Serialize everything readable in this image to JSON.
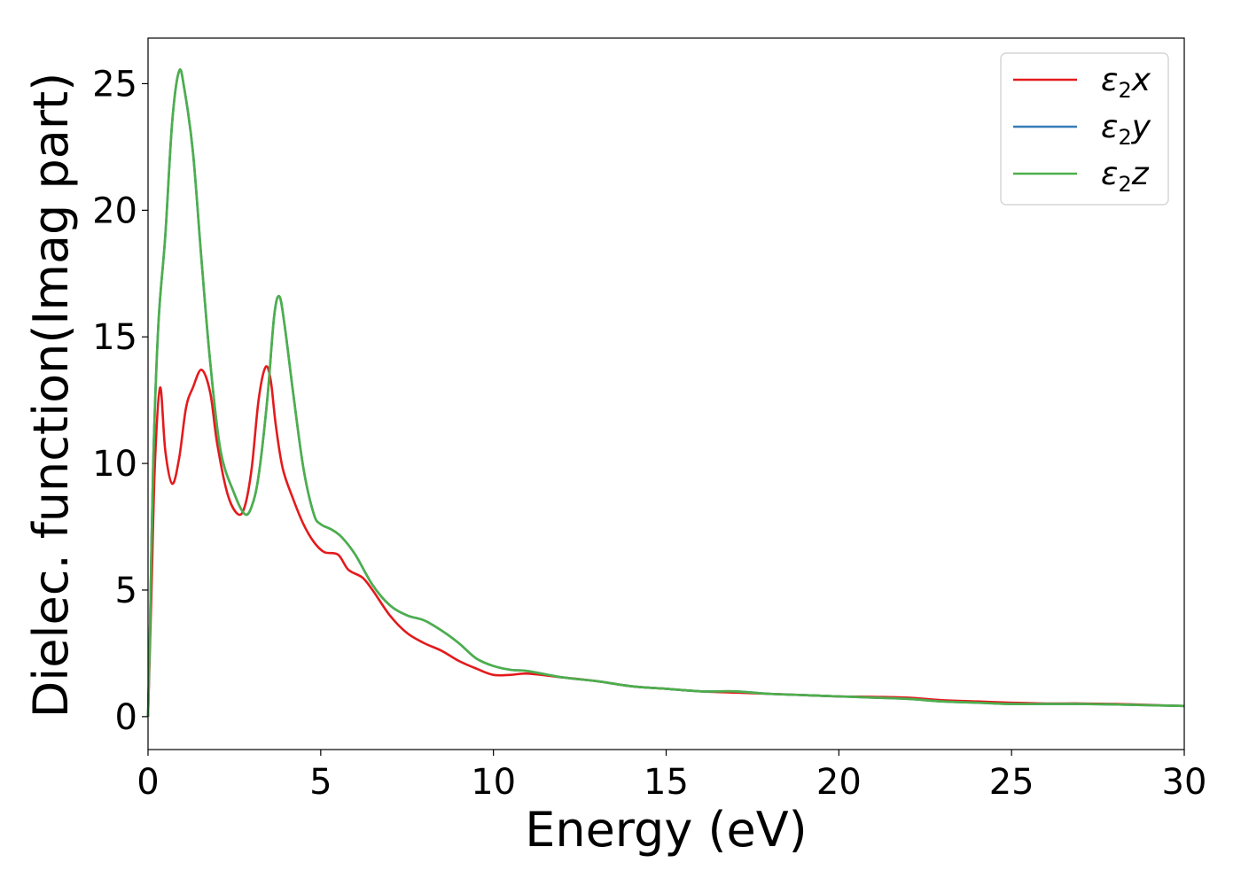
{
  "chart_data": {
    "type": "line",
    "xlabel": "Energy (eV)",
    "ylabel": "Dielec. function(Imag part)",
    "xlim": [
      0,
      30
    ],
    "ylim": [
      -1.3,
      26.8
    ],
    "xticks": [
      0,
      5,
      10,
      15,
      20,
      25,
      30
    ],
    "yticks": [
      0,
      5,
      10,
      15,
      20,
      25
    ],
    "legend_position": "top-right",
    "grid": false,
    "series": [
      {
        "name": "ε2x",
        "legend_base": "ε",
        "legend_sub": "2",
        "legend_var": "x",
        "color": "#e41a1c",
        "points": [
          [
            0,
            0
          ],
          [
            0.1,
            5
          ],
          [
            0.2,
            10
          ],
          [
            0.35,
            13
          ],
          [
            0.5,
            10.5
          ],
          [
            0.7,
            9.2
          ],
          [
            0.9,
            10.2
          ],
          [
            1.1,
            12.2
          ],
          [
            1.3,
            13
          ],
          [
            1.55,
            13.7
          ],
          [
            1.8,
            12.8
          ],
          [
            2.0,
            10.8
          ],
          [
            2.3,
            8.8
          ],
          [
            2.6,
            8.0
          ],
          [
            2.8,
            8.3
          ],
          [
            3.0,
            9.8
          ],
          [
            3.2,
            12.5
          ],
          [
            3.4,
            13.8
          ],
          [
            3.55,
            13.3
          ],
          [
            3.7,
            11.5
          ],
          [
            3.9,
            9.8
          ],
          [
            4.2,
            8.6
          ],
          [
            4.5,
            7.6
          ],
          [
            4.8,
            6.9
          ],
          [
            5.1,
            6.5
          ],
          [
            5.5,
            6.4
          ],
          [
            5.8,
            5.8
          ],
          [
            6.2,
            5.5
          ],
          [
            6.5,
            5.0
          ],
          [
            7.0,
            4.0
          ],
          [
            7.5,
            3.3
          ],
          [
            8.0,
            2.9
          ],
          [
            8.5,
            2.6
          ],
          [
            9.0,
            2.2
          ],
          [
            9.5,
            1.9
          ],
          [
            10,
            1.65
          ],
          [
            10.5,
            1.65
          ],
          [
            11,
            1.7
          ],
          [
            12,
            1.55
          ],
          [
            13,
            1.4
          ],
          [
            14,
            1.2
          ],
          [
            15,
            1.1
          ],
          [
            16,
            1.0
          ],
          [
            17,
            0.95
          ],
          [
            18,
            0.9
          ],
          [
            19,
            0.85
          ],
          [
            20,
            0.8
          ],
          [
            21,
            0.78
          ],
          [
            22,
            0.75
          ],
          [
            23,
            0.65
          ],
          [
            24,
            0.6
          ],
          [
            25,
            0.55
          ],
          [
            26,
            0.52
          ],
          [
            27,
            0.52
          ],
          [
            28,
            0.5
          ],
          [
            29,
            0.46
          ],
          [
            30,
            0.42
          ]
        ]
      },
      {
        "name": "ε2y",
        "legend_base": "ε",
        "legend_sub": "2",
        "legend_var": "y",
        "color": "#377eb8",
        "points": [
          [
            0,
            0
          ],
          [
            0.05,
            3
          ],
          [
            0.15,
            10
          ],
          [
            0.3,
            15.5
          ],
          [
            0.5,
            19
          ],
          [
            0.7,
            23.5
          ],
          [
            0.9,
            25.5
          ],
          [
            1.05,
            24.8
          ],
          [
            1.3,
            22.3
          ],
          [
            1.55,
            18
          ],
          [
            1.8,
            14
          ],
          [
            2.1,
            10.5
          ],
          [
            2.5,
            8.8
          ],
          [
            2.8,
            8.0
          ],
          [
            3.0,
            8.3
          ],
          [
            3.2,
            9.5
          ],
          [
            3.45,
            12.5
          ],
          [
            3.65,
            15.8
          ],
          [
            3.8,
            16.6
          ],
          [
            3.95,
            15.5
          ],
          [
            4.2,
            12.8
          ],
          [
            4.5,
            9.8
          ],
          [
            4.8,
            8.0
          ],
          [
            5.0,
            7.6
          ],
          [
            5.3,
            7.4
          ],
          [
            5.6,
            7.1
          ],
          [
            6.0,
            6.4
          ],
          [
            6.5,
            5.2
          ],
          [
            7.0,
            4.4
          ],
          [
            7.5,
            4.0
          ],
          [
            8.0,
            3.8
          ],
          [
            8.5,
            3.4
          ],
          [
            9.0,
            2.9
          ],
          [
            9.5,
            2.3
          ],
          [
            10,
            2.0
          ],
          [
            10.5,
            1.85
          ],
          [
            11,
            1.8
          ],
          [
            12,
            1.55
          ],
          [
            13,
            1.4
          ],
          [
            14,
            1.2
          ],
          [
            15,
            1.1
          ],
          [
            16,
            1.0
          ],
          [
            17,
            1.0
          ],
          [
            18,
            0.9
          ],
          [
            19,
            0.85
          ],
          [
            20,
            0.8
          ],
          [
            21,
            0.75
          ],
          [
            22,
            0.7
          ],
          [
            23,
            0.6
          ],
          [
            24,
            0.55
          ],
          [
            25,
            0.5
          ],
          [
            26,
            0.5
          ],
          [
            27,
            0.5
          ],
          [
            28,
            0.48
          ],
          [
            29,
            0.45
          ],
          [
            30,
            0.42
          ]
        ]
      },
      {
        "name": "ε2z",
        "legend_base": "ε",
        "legend_sub": "2",
        "legend_var": "z",
        "color": "#4daf4a",
        "points": [
          [
            0,
            0
          ],
          [
            0.05,
            3
          ],
          [
            0.15,
            10
          ],
          [
            0.3,
            15.5
          ],
          [
            0.5,
            19
          ],
          [
            0.7,
            23.5
          ],
          [
            0.9,
            25.5
          ],
          [
            1.05,
            24.8
          ],
          [
            1.3,
            22.3
          ],
          [
            1.55,
            18
          ],
          [
            1.8,
            14
          ],
          [
            2.1,
            10.5
          ],
          [
            2.5,
            8.8
          ],
          [
            2.8,
            8.0
          ],
          [
            3.0,
            8.3
          ],
          [
            3.2,
            9.5
          ],
          [
            3.45,
            12.5
          ],
          [
            3.65,
            15.8
          ],
          [
            3.8,
            16.6
          ],
          [
            3.95,
            15.5
          ],
          [
            4.2,
            12.8
          ],
          [
            4.5,
            9.8
          ],
          [
            4.8,
            8.0
          ],
          [
            5.0,
            7.6
          ],
          [
            5.3,
            7.4
          ],
          [
            5.6,
            7.1
          ],
          [
            6.0,
            6.4
          ],
          [
            6.5,
            5.2
          ],
          [
            7.0,
            4.4
          ],
          [
            7.5,
            4.0
          ],
          [
            8.0,
            3.8
          ],
          [
            8.5,
            3.4
          ],
          [
            9.0,
            2.9
          ],
          [
            9.5,
            2.3
          ],
          [
            10,
            2.0
          ],
          [
            10.5,
            1.85
          ],
          [
            11,
            1.8
          ],
          [
            12,
            1.55
          ],
          [
            13,
            1.4
          ],
          [
            14,
            1.2
          ],
          [
            15,
            1.1
          ],
          [
            16,
            1.0
          ],
          [
            17,
            1.0
          ],
          [
            18,
            0.9
          ],
          [
            19,
            0.85
          ],
          [
            20,
            0.8
          ],
          [
            21,
            0.75
          ],
          [
            22,
            0.7
          ],
          [
            23,
            0.6
          ],
          [
            24,
            0.55
          ],
          [
            25,
            0.5
          ],
          [
            26,
            0.5
          ],
          [
            27,
            0.5
          ],
          [
            28,
            0.48
          ],
          [
            29,
            0.45
          ],
          [
            30,
            0.42
          ]
        ]
      }
    ]
  }
}
